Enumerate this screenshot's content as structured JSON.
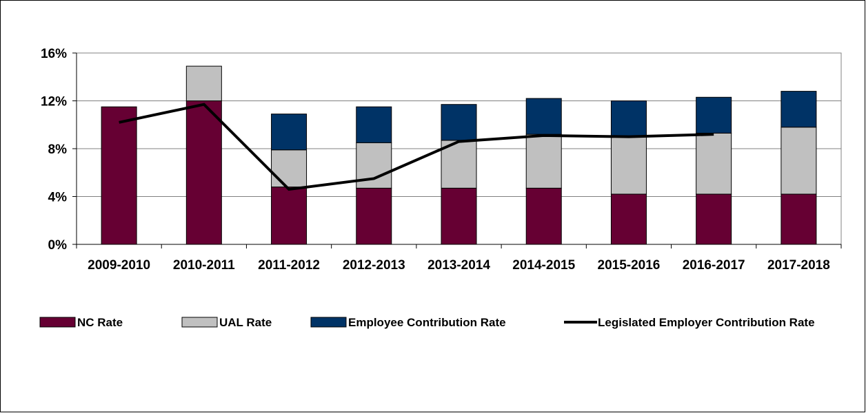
{
  "chart_data": {
    "type": "bar",
    "stacked": true,
    "categories": [
      "2009-2010",
      "2010-2011",
      "2011-2012",
      "2012-2013",
      "2013-2014",
      "2014-2015",
      "2015-2016",
      "2016-2017",
      "2017-2018"
    ],
    "series": [
      {
        "name": "NC Rate",
        "color": "#660033",
        "values": [
          11.5,
          12.0,
          4.8,
          4.7,
          4.7,
          4.7,
          4.2,
          4.2,
          4.2
        ]
      },
      {
        "name": "UAL Rate",
        "color": "#c0c0c0",
        "values": [
          0.0,
          2.9,
          3.1,
          3.8,
          4.0,
          4.5,
          4.8,
          5.1,
          5.6
        ]
      },
      {
        "name": "Employee Contribution Rate",
        "color": "#003366",
        "values": [
          0.0,
          0.0,
          3.0,
          3.0,
          3.0,
          3.0,
          3.0,
          3.0,
          3.0
        ]
      }
    ],
    "line_series": {
      "name": "Legislated Employer Contribution Rate",
      "color": "#000000",
      "values": [
        10.2,
        11.7,
        4.6,
        5.5,
        8.6,
        9.1,
        9.0,
        9.2,
        null
      ]
    },
    "y_ticks": [
      "0%",
      "4%",
      "8%",
      "12%",
      "16%"
    ],
    "ylim": [
      0,
      16
    ],
    "grid": true,
    "legend_position": "bottom"
  }
}
